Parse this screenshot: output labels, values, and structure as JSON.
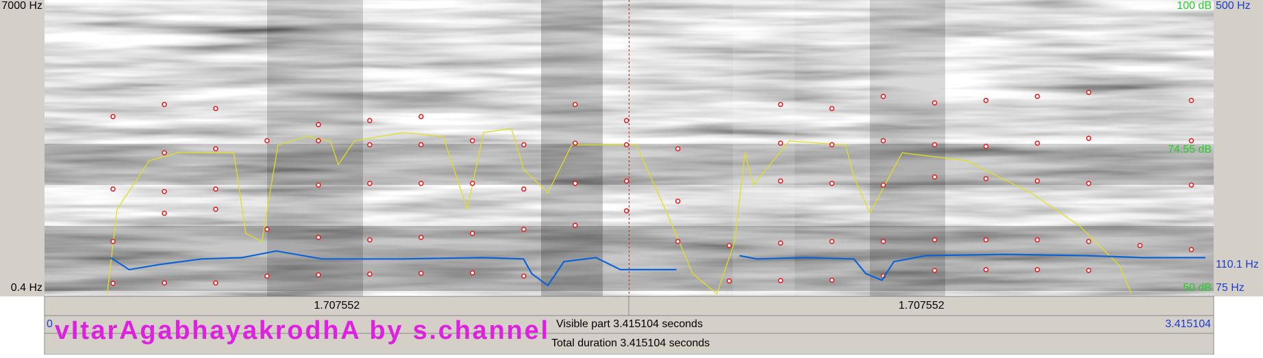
{
  "chart_data": {
    "type": "spectrogram",
    "title": "vItarAgabhayakrodhA by s.channel",
    "xlim": [
      0,
      3.415104
    ],
    "ylim": [
      0.4,
      7000
    ],
    "yticks": [
      {
        "value": 7000,
        "label": "7000 Hz"
      },
      {
        "value": 0.4,
        "label": "0.4 Hz"
      }
    ],
    "y2lim": [
      75,
      500
    ],
    "y2ticks": [
      {
        "value": 500,
        "label": "500 Hz"
      },
      {
        "value": 110.1,
        "label": "110.1 Hz"
      },
      {
        "value": 75,
        "label": "75 Hz"
      }
    ],
    "intensity_lim": [
      50,
      100
    ],
    "intensity_ticks": [
      {
        "value": 100,
        "label": "100 dB"
      },
      {
        "value": 74.55,
        "label": "74.55 dB"
      },
      {
        "value": 50,
        "label": "50 dB"
      }
    ],
    "cursor": 1.707552,
    "intervals": [
      1.707552,
      1.707552
    ],
    "visible_label": "Visible part 3.415104 seconds",
    "total_label": "Total duration 3.415104 seconds",
    "pitch": {
      "color": "#0a64d8",
      "x": [
        0.193,
        0.247,
        0.341,
        0.459,
        0.576,
        0.677,
        0.811,
        1.047,
        1.282,
        1.399,
        1.423,
        1.47,
        1.517,
        1.611,
        1.682,
        1.752,
        1.846,
        1.9,
        2.03,
        2.081,
        2.223,
        2.364,
        2.399,
        2.446,
        2.481,
        2.575,
        2.81,
        3.046,
        3.21,
        3.391
      ],
      "values": [
        121,
        103,
        111,
        119,
        121,
        131,
        119,
        119,
        121,
        119,
        97,
        79,
        115,
        121,
        103,
        103,
        103,
        null,
        124,
        119,
        121,
        119,
        97,
        87,
        115,
        124,
        126,
        124,
        121,
        121
      ]
    },
    "intensity": {
      "color": "#e0e020",
      "x": [
        0.183,
        0.212,
        0.306,
        0.388,
        0.553,
        0.588,
        0.635,
        0.682,
        0.764,
        0.835,
        0.858,
        0.905,
        1.047,
        1.164,
        1.235,
        1.282,
        1.364,
        1.399,
        1.47,
        1.54,
        1.729,
        1.823,
        1.893,
        1.964,
        2.016,
        2.046,
        2.07,
        2.176,
        2.34,
        2.364,
        2.411,
        2.505,
        2.693,
        2.881,
        3.022,
        3.14,
        3.175
      ],
      "values": [
        49,
        64,
        72.6,
        74,
        74,
        59.7,
        58.3,
        75.4,
        76.9,
        76.1,
        71.9,
        76.1,
        77.6,
        76.9,
        64,
        77.6,
        78.3,
        71.1,
        66.9,
        75.4,
        75.4,
        62.6,
        52.6,
        49,
        58.3,
        74,
        68.3,
        76.1,
        75.4,
        69.7,
        63.3,
        74,
        72.6,
        66.9,
        61.1,
        54,
        49
      ]
    },
    "formants": {
      "color": "#e02020",
      "x": [
        0.2,
        0.35,
        0.5,
        0.65,
        0.8,
        0.95,
        1.1,
        1.25,
        1.4,
        1.55,
        1.7,
        1.85,
        2.0,
        2.15,
        2.3,
        2.45,
        2.6,
        2.75,
        2.9,
        3.05,
        3.2,
        3.35
      ],
      "series": [
        {
          "values": [
            120,
            130,
            130,
            300,
            330,
            350,
            370,
            380,
            300,
            null,
            null,
            null,
            180,
            190,
            200,
            300,
            440,
            460,
            460,
            440,
            null,
            null
          ]
        },
        {
          "values": [
            1160,
            1860,
            1960,
            1460,
            1260,
            1200,
            1260,
            1360,
            1460,
            1560,
            1920,
            1160,
            1060,
            1120,
            1160,
            1160,
            1200,
            1200,
            1200,
            1160,
            1060,
            960
          ]
        },
        {
          "values": [
            2460,
            2400,
            2460,
            null,
            2560,
            2600,
            2600,
            2600,
            2460,
            2600,
            2660,
            2160,
            null,
            2660,
            2600,
            2560,
            2760,
            2720,
            2660,
            2600,
            null,
            2560
          ]
        },
        {
          "values": [
            null,
            3360,
            3460,
            3660,
            3660,
            3560,
            3560,
            3660,
            3560,
            3600,
            3560,
            3460,
            null,
            3600,
            3560,
            3660,
            3560,
            3520,
            3600,
            3720,
            null,
            3660
          ]
        },
        {
          "values": [
            4260,
            4560,
            4460,
            null,
            4060,
            4160,
            4260,
            null,
            null,
            4560,
            4160,
            null,
            null,
            4560,
            4460,
            4760,
            4600,
            4660,
            4760,
            4860,
            null,
            4660
          ]
        }
      ]
    }
  }
}
